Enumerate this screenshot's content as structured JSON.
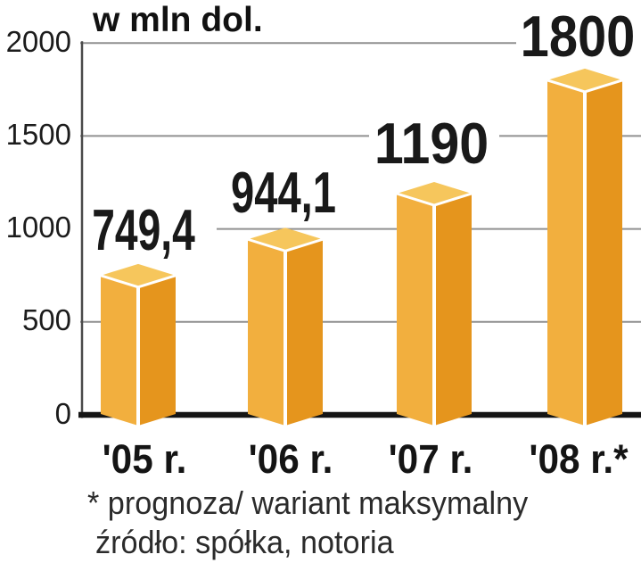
{
  "chart_data": {
    "type": "bar",
    "title": "w mln dol.",
    "categories": [
      "'05 r.",
      "'06 r.",
      "'07 r.",
      "'08 r.*"
    ],
    "values": [
      749.4,
      944.1,
      1190,
      1800
    ],
    "value_labels": [
      "749,4",
      "944,1",
      "1190",
      "1800"
    ],
    "y_ticks": [
      "2000",
      "1500",
      "1000",
      "500",
      "0"
    ],
    "ylim": [
      0,
      2000
    ],
    "grid": true,
    "legend_position": "none",
    "footnotes": [
      "* prognoza/ wariant maksymalny",
      "źródło: spółka, notoria"
    ],
    "colors": {
      "bar_left_face": "#F2AF3E",
      "bar_right_face": "#E5951D",
      "bar_top_face": "#F6C65C",
      "grid_line": "#909090",
      "axis_line": "#4A4A4A",
      "baseline": "#151515",
      "text": "#1A1A1A"
    }
  }
}
